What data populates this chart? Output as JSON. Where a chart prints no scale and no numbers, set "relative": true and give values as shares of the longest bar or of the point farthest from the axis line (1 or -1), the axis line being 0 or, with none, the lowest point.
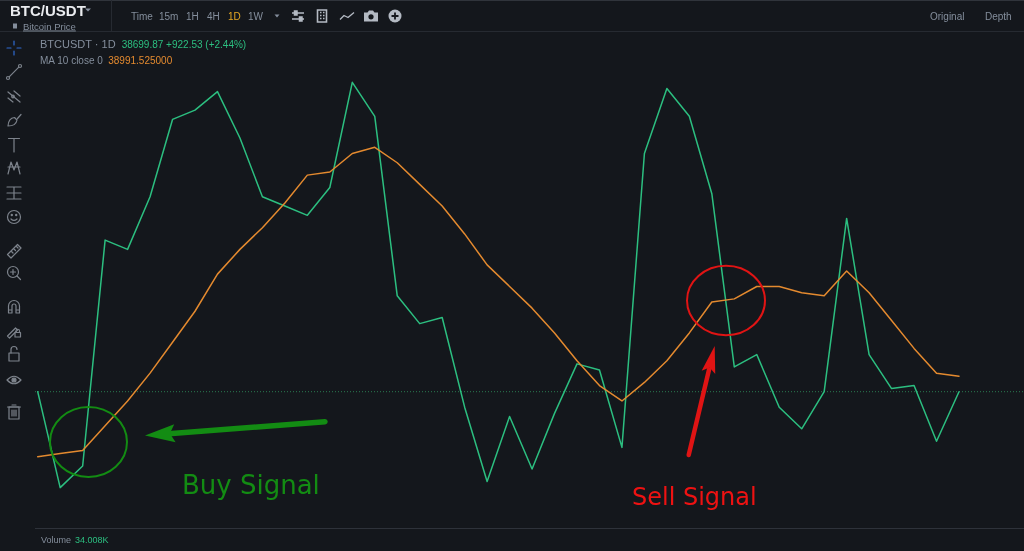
{
  "chart_data": {
    "type": "line",
    "relative": true,
    "title": "BTC/USDT",
    "subtitle": "Bitcoin Price",
    "categories": [
      null,
      null,
      null,
      null,
      null,
      null,
      null,
      null,
      null,
      null,
      null,
      null,
      null,
      null,
      null,
      null,
      null,
      null,
      null,
      null,
      null,
      null,
      null,
      null,
      null,
      null,
      null,
      null,
      null,
      null,
      null,
      null,
      null,
      null,
      null,
      null,
      null,
      null,
      null,
      null,
      null,
      null
    ],
    "series": [
      {
        "color": "#2cbf80",
        "values": [
          0,
          -0.31,
          -0.24,
          0.49,
          0.46,
          0.63,
          0.88,
          0.91,
          0.97,
          0.82,
          0.63,
          0.6,
          0.57,
          0.66,
          1,
          0.89,
          0.31,
          0.22,
          0.24,
          -0.05,
          -0.29,
          -0.08,
          -0.25,
          -0.07,
          0.09,
          0.07,
          -0.18,
          0.77,
          0.98,
          0.89,
          0.64,
          0.08,
          0.12,
          -0.05,
          -0.12,
          0,
          0.56,
          0.12,
          0.01,
          0.02,
          -0.16,
          0
        ]
      },
      {
        "color": "#e48a2f",
        "values": [
          -0.21,
          -0.2,
          -0.19,
          -0.11,
          -0.03,
          0.06,
          0.16,
          0.26,
          0.38,
          0.46,
          0.53,
          0.61,
          0.7,
          0.71,
          0.77,
          0.79,
          0.74,
          0.67,
          0.6,
          0.51,
          0.41,
          0.34,
          0.27,
          0.19,
          0.1,
          0.02,
          -0.03,
          0.03,
          0.1,
          0.19,
          0.29,
          0.3,
          0.34,
          0.34,
          0.32,
          0.31,
          0.39,
          0.32,
          0.23,
          0.14,
          0.06,
          0.05
        ]
      }
    ],
    "ref_lines": [
      {
        "axis": "y",
        "value": 0,
        "color": "#2b7a50",
        "line_style": "dotted"
      }
    ],
    "annotations": [
      "Time",
      "15m",
      "1H",
      "4H",
      "1D",
      "1W",
      "Original",
      "Depth",
      "BTCUSDT · 1D",
      "38699.87 +922.53 (+2.44%)",
      "MA 10 close 0",
      "38991.525000",
      "Buy Signal",
      "Sell Signal",
      "Volume",
      "34.008K"
    ]
  }
}
